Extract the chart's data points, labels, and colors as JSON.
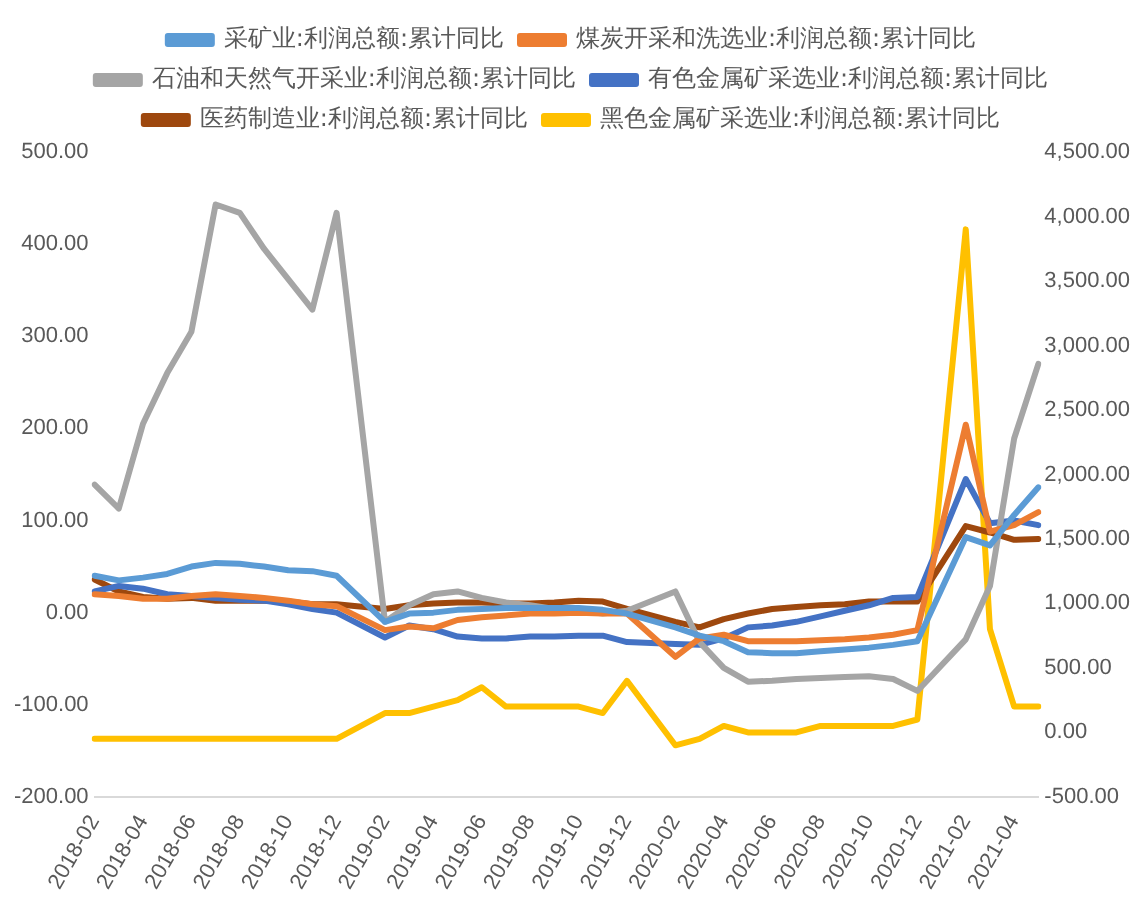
{
  "chart_data": {
    "type": "line",
    "categories": [
      "2018-02",
      null,
      "2018-04",
      null,
      "2018-06",
      null,
      "2018-08",
      null,
      "2018-10",
      null,
      "2018-12",
      null,
      "2019-02",
      null,
      "2019-04",
      null,
      "2019-06",
      null,
      "2019-08",
      null,
      "2019-10",
      null,
      "2019-12",
      null,
      "2020-02",
      null,
      "2020-04",
      null,
      "2020-06",
      null,
      "2020-08",
      null,
      "2020-10",
      null,
      "2020-12",
      null,
      "2021-02",
      null,
      "2021-04",
      null
    ],
    "series": [
      {
        "name": "采矿业:利润总额:累计同比",
        "color": "#5b9bd5",
        "values": [
          40,
          35,
          38,
          42,
          50,
          54,
          53,
          50,
          46,
          45,
          40,
          null,
          -10,
          -1,
          0,
          3,
          4,
          5,
          5,
          5,
          5,
          3,
          -1,
          null,
          -16,
          -25,
          -31,
          -43,
          -44,
          -44,
          -42,
          -40,
          -38,
          -35,
          -31,
          null,
          82,
          73,
          106,
          136
        ]
      },
      {
        "name": "煤炭开采和洗选业:利润总额:累计同比",
        "color": "#ed7d31",
        "values": [
          20,
          18,
          15,
          15,
          18,
          20,
          18,
          16,
          13,
          9,
          7,
          null,
          -19,
          -15,
          -17,
          -8,
          -5,
          -3,
          -1,
          -1,
          0,
          -1,
          -1,
          null,
          -48,
          -28,
          -24,
          -31,
          -31,
          -31,
          -30,
          -29,
          -27,
          -24,
          -19,
          null,
          204,
          88,
          95,
          109
        ]
      },
      {
        "name": "石油和天然气开采业:利润总额:累计同比",
        "color": "#a5a5a5",
        "values": [
          139,
          113,
          205,
          260,
          305,
          443,
          434,
          395,
          362,
          329,
          434,
          null,
          -10,
          8,
          20,
          23,
          16,
          11,
          8,
          4,
          2,
          -1,
          2,
          null,
          23,
          -32,
          -60,
          -75,
          -74,
          -72,
          -71,
          -70,
          -69,
          -72,
          -85,
          null,
          -29,
          29,
          189,
          270
        ]
      },
      {
        "name": "有色金属矿采选业:利润总额:累计同比",
        "color": "#4472c4",
        "values": [
          23,
          29,
          26,
          20,
          18,
          16,
          14,
          13,
          9,
          4,
          0,
          null,
          -27,
          -14,
          -18,
          -26,
          -28,
          -28,
          -26,
          -26,
          -25,
          -25,
          -32,
          null,
          -34,
          -35,
          -28,
          -16,
          -14,
          -10,
          -4,
          2,
          8,
          16,
          17,
          null,
          145,
          97,
          100,
          95
        ]
      },
      {
        "name": "医药制造业:利润总额:累计同比",
        "color": "#9e480e",
        "values": [
          36,
          23,
          17,
          15,
          16,
          13,
          13,
          13,
          12,
          9,
          9,
          null,
          4,
          8,
          10,
          11,
          11,
          10,
          10,
          11,
          13,
          12,
          4,
          null,
          -10,
          -16,
          -7,
          -1,
          4,
          6,
          8,
          9,
          12,
          12,
          12,
          null,
          94,
          87,
          79,
          80
        ]
      },
      {
        "name": "黑色金属矿采选业:利润总额:累计同比",
        "color": "#ffc000",
        "axis": "y2",
        "values": [
          -50,
          -50,
          -50,
          -50,
          -50,
          -50,
          -50,
          -50,
          -50,
          -50,
          -50,
          null,
          150,
          150,
          200,
          250,
          350,
          200,
          200,
          200,
          200,
          150,
          400,
          null,
          -100,
          -50,
          50,
          0,
          0,
          0,
          50,
          50,
          50,
          50,
          100,
          null,
          3900,
          800,
          200,
          200
        ]
      }
    ],
    "ylim": [
      -200,
      500
    ],
    "yticks": [
      {
        "value": -200,
        "label": "-200.00"
      },
      {
        "value": -100,
        "label": "-100.00"
      },
      {
        "value": 0,
        "label": "0.00"
      },
      {
        "value": 100,
        "label": "100.00"
      },
      {
        "value": 200,
        "label": "200.00"
      },
      {
        "value": 300,
        "label": "300.00"
      },
      {
        "value": 400,
        "label": "400.00"
      },
      {
        "value": 500,
        "label": "500.00"
      }
    ],
    "y2lim": [
      -500,
      4500
    ],
    "y2ticks": [
      {
        "value": -500,
        "label": "-500.00"
      },
      {
        "value": 0,
        "label": "0.00"
      },
      {
        "value": 500,
        "label": "500.00"
      },
      {
        "value": 1000,
        "label": "1,000.00"
      },
      {
        "value": 1500,
        "label": "1,500.00"
      },
      {
        "value": 2000,
        "label": "2,000.00"
      },
      {
        "value": 2500,
        "label": "2,500.00"
      },
      {
        "value": 3000,
        "label": "3,000.00"
      },
      {
        "value": 3500,
        "label": "3,500.00"
      },
      {
        "value": 4000,
        "label": "4,000.00"
      },
      {
        "value": 4500,
        "label": "4,500.00"
      }
    ],
    "legend": "top",
    "marker": "none",
    "line_style": "solid"
  }
}
